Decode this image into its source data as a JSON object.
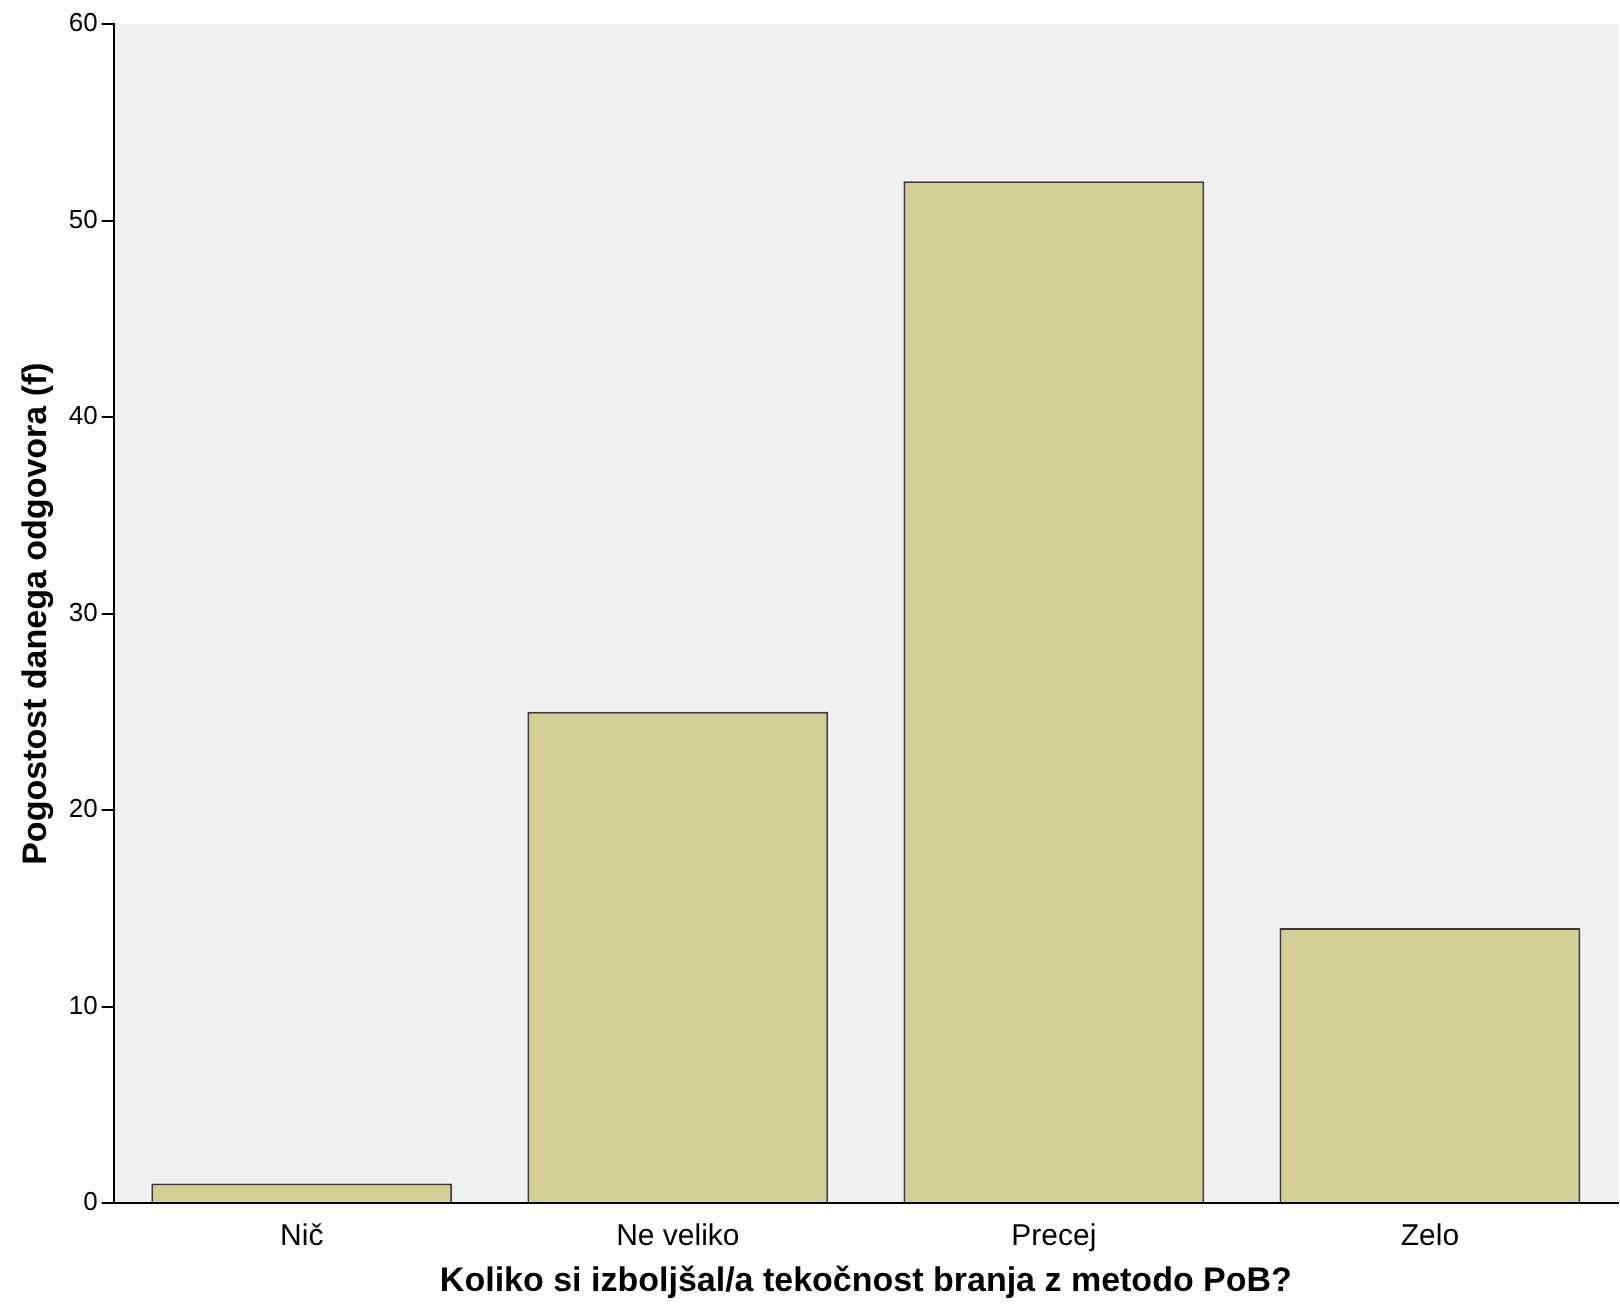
{
  "chart_data": {
    "type": "bar",
    "xlabel": "Koliko si izboljšal/a tekočnost branja z metodo PoB?",
    "ylabel": "Pogostost danega odgovora (f)",
    "categories": [
      "Nič",
      "Ne veliko",
      "Precej",
      "Zelo"
    ],
    "values": [
      1,
      25,
      52,
      14
    ],
    "color": "#d3ce97",
    "ylim": [
      0,
      60
    ],
    "yticks": [
      0,
      10,
      20,
      30,
      40,
      50,
      60
    ],
    "grid": false,
    "legend": false
  }
}
